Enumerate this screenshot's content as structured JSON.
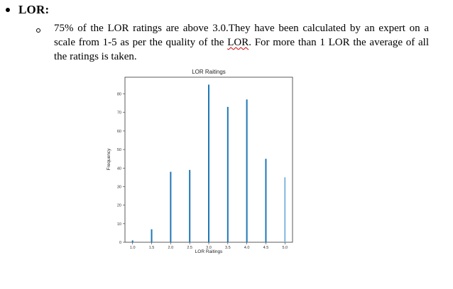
{
  "document": {
    "heading": "LOR:",
    "paragraph": {
      "before_term": "75% of the LOR ratings are above 3.0.They have been calculated by an expert on a scale from 1-5 as per the quality of the ",
      "term": "LOR",
      "after_term": ". For more than 1 LOR the average of all the ratings is taken."
    }
  },
  "chart_data": {
    "type": "bar",
    "title": "LOR Raitings",
    "xlabel": "LOR Raitings",
    "ylabel": "Frequency",
    "x": [
      1.0,
      1.5,
      2.0,
      2.5,
      3.0,
      3.5,
      4.0,
      4.5,
      5.0
    ],
    "values": [
      1,
      7,
      38,
      39,
      85,
      73,
      77,
      45,
      35
    ],
    "xticks": [
      "1.0",
      "1.5",
      "2.0",
      "2.5",
      "3.0",
      "3.5",
      "4.0",
      "4.5",
      "5.0"
    ],
    "yticks": [
      "0",
      "10",
      "20",
      "30",
      "40",
      "50",
      "60",
      "70",
      "80"
    ],
    "xlim": [
      0.8,
      5.2
    ],
    "ylim": [
      0,
      89
    ],
    "bar_color": "#1f77b4",
    "last_bar_color": "#7fb6e0",
    "grid": false
  }
}
